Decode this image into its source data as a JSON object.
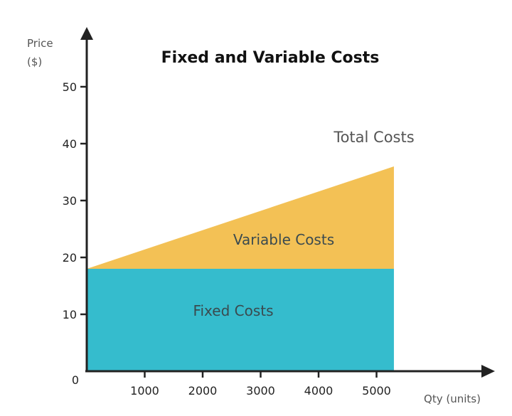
{
  "chart_data": {
    "type": "area",
    "title": "Fixed and Variable Costs",
    "ylabel": [
      "Price",
      "($)"
    ],
    "xlabel": "Qty (units)",
    "x_ticks": [
      1000,
      2000,
      3000,
      4000,
      5000
    ],
    "y_ticks": [
      10,
      20,
      30,
      40,
      50
    ],
    "origin_label": "0",
    "xlim": [
      0,
      7100
    ],
    "ylim": [
      0,
      59
    ],
    "grid": false,
    "x_range": [
      0,
      5300
    ],
    "series": [
      {
        "name": "Fixed Costs",
        "x": [
          0,
          5300
        ],
        "y": [
          18,
          18
        ],
        "base": [
          0,
          0
        ],
        "color": "#35BCCD"
      },
      {
        "name": "Variable Costs",
        "x": [
          0,
          5300
        ],
        "y": [
          18,
          36
        ],
        "base": [
          18,
          18
        ],
        "color": "#F3C155"
      }
    ],
    "annotations": {
      "total": "Total Costs"
    }
  }
}
